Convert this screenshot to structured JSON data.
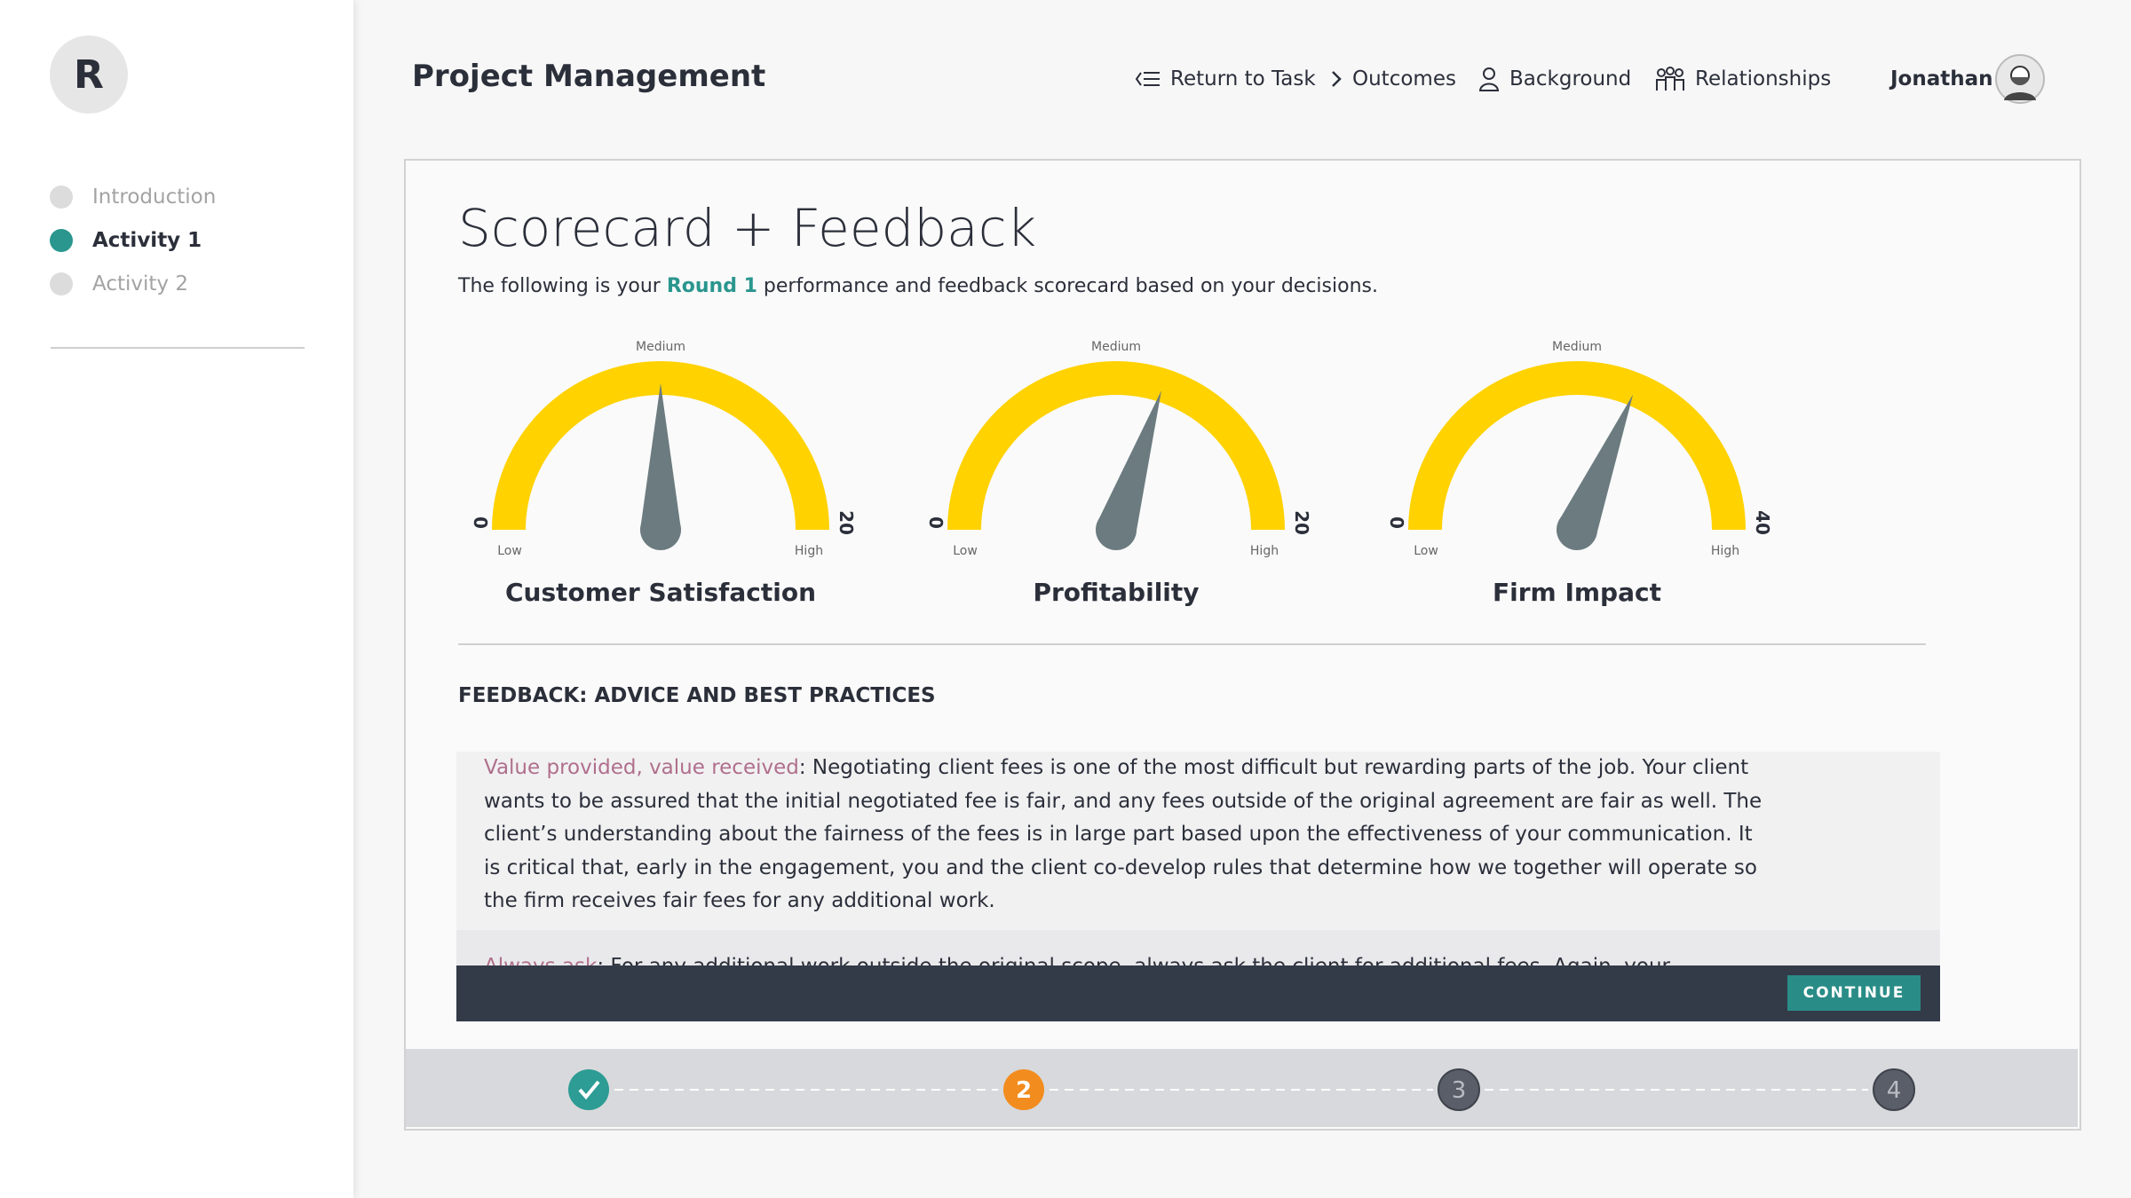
{
  "sidebar": {
    "logo": "R",
    "nav": [
      {
        "label": "Introduction",
        "state": "todo"
      },
      {
        "label": "Activity 1",
        "state": "active"
      },
      {
        "label": "Activity 2",
        "state": "todo"
      }
    ]
  },
  "header": {
    "title": "Project Management",
    "nav": [
      "Return to Task",
      "Outcomes",
      "Background",
      "Relationships"
    ],
    "user": "Jonathan"
  },
  "scorecard": {
    "title": "Scorecard + Feedback",
    "intro": {
      "before": "The following is your ",
      "highlight": "Round 1",
      "after": " performance and feedback scorecard based on your decisions."
    }
  },
  "gauges": [
    {
      "name": "Customer Satisfaction",
      "min": 0,
      "max": 20,
      "value": 10,
      "mid_label": "Medium",
      "low_label": "Low",
      "high_label": "High"
    },
    {
      "name": "Profitability",
      "min": 0,
      "max": 20,
      "value": 12,
      "mid_label": "Medium",
      "low_label": "Low",
      "high_label": "High"
    },
    {
      "name": "Firm Impact",
      "min": 0,
      "max": 40,
      "value": 25,
      "mid_label": "Medium",
      "low_label": "Low",
      "high_label": "High"
    }
  ],
  "feedback": {
    "heading": "FEEDBACK: ADVICE AND BEST PRACTICES",
    "items": [
      {
        "term": "Value provided, value received",
        "text": ": Negotiating client fees is one of the most difficult but rewarding parts of the job. Your client wants to be assured that the initial negotiated fee is fair, and any fees outside of the original agreement are fair as well. The client’s understanding about the fairness of the fees is in large part based upon the effectiveness of your communication. It is critical that, early in the engagement, you and the client co-develop rules that determine how we together will operate so the firm receives fair fees for any additional work."
      },
      {
        "term": "Always ask",
        "text": ": For any additional work outside the original scope, always ask the client for additional fees. Again, your perspective should be to receive fair value for the value you consider reasonable for the services you deliver."
      }
    ],
    "continue": "CONTINUE"
  },
  "steps": [
    {
      "state": "done"
    },
    {
      "label": "2",
      "state": "current"
    },
    {
      "label": "3",
      "state": "todo"
    },
    {
      "label": "4",
      "state": "todo"
    }
  ]
}
